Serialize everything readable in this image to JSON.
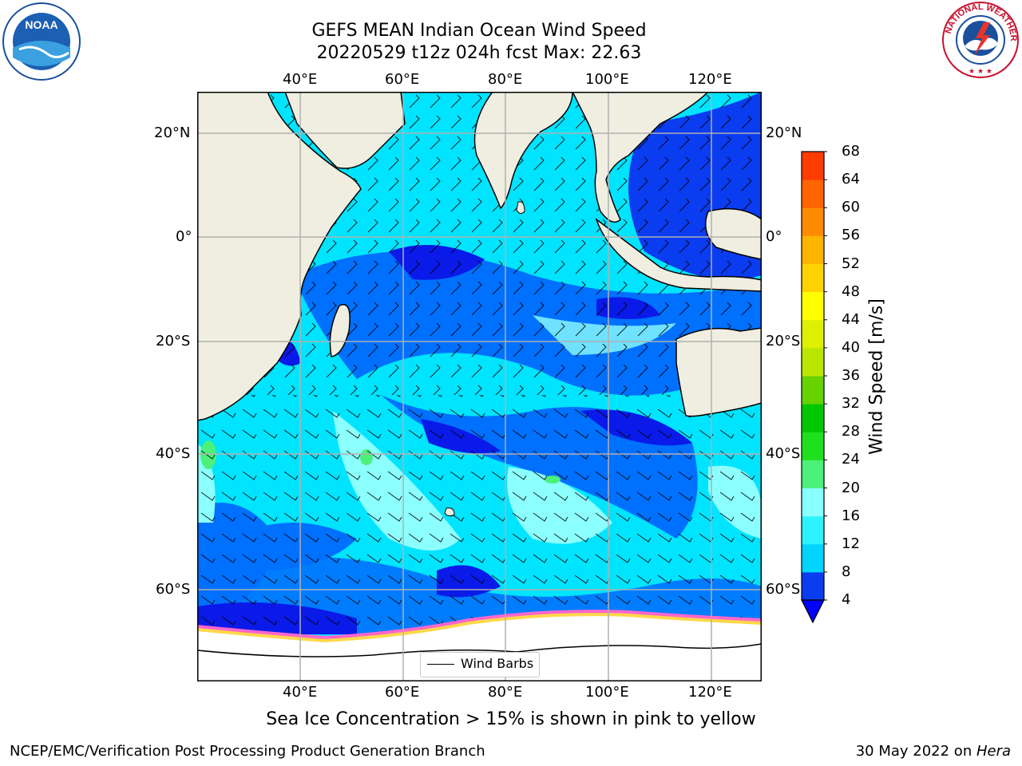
{
  "title_line1": "GEFS MEAN Indian Ocean Wind Speed",
  "title_line2": "20220529 t12z 024h fcst   Max: 22.63",
  "lon_labels": [
    "40°E",
    "60°E",
    "80°E",
    "100°E",
    "120°E"
  ],
  "lat_labels": [
    "20°N",
    "0°",
    "20°S",
    "40°S",
    "60°S"
  ],
  "colorbar": {
    "label": "Wind Speed [m/s]",
    "ticks": [
      "4",
      "8",
      "12",
      "16",
      "20",
      "24",
      "28",
      "32",
      "36",
      "40",
      "44",
      "48",
      "52",
      "56",
      "60",
      "64",
      "68"
    ],
    "colors": [
      "#0a3cf0",
      "#00d4ff",
      "#2ef2ff",
      "#8affff",
      "#4cf07a",
      "#1ee01e",
      "#00c800",
      "#66d200",
      "#b9e600",
      "#dcf000",
      "#ffff00",
      "#ffd200",
      "#ffb400",
      "#ff8c00",
      "#ff6400",
      "#ff3c00",
      "#ff0000"
    ],
    "under_color": "#0000ff"
  },
  "legend_label": "Wind Barbs",
  "subtitle": "Sea Ice Concentration > 15% is shown in pink to yellow",
  "footer_left": "NCEP/EMC/Verification Post Processing Product Generation Branch",
  "footer_right_text": "30 May 2022 on ",
  "footer_right_italic": "Hera",
  "logos": {
    "noaa_text": "NOAA",
    "nws_text": "NATIONAL WEATHER SERVICE"
  },
  "map_colors": {
    "land": "#efeee0",
    "ocean_dark": "#0a3cf0",
    "ocean_med": "#0070ff",
    "ocean_light": "#00e4ff",
    "ocean_pale": "#8cffff",
    "ice": "#ffffff"
  }
}
